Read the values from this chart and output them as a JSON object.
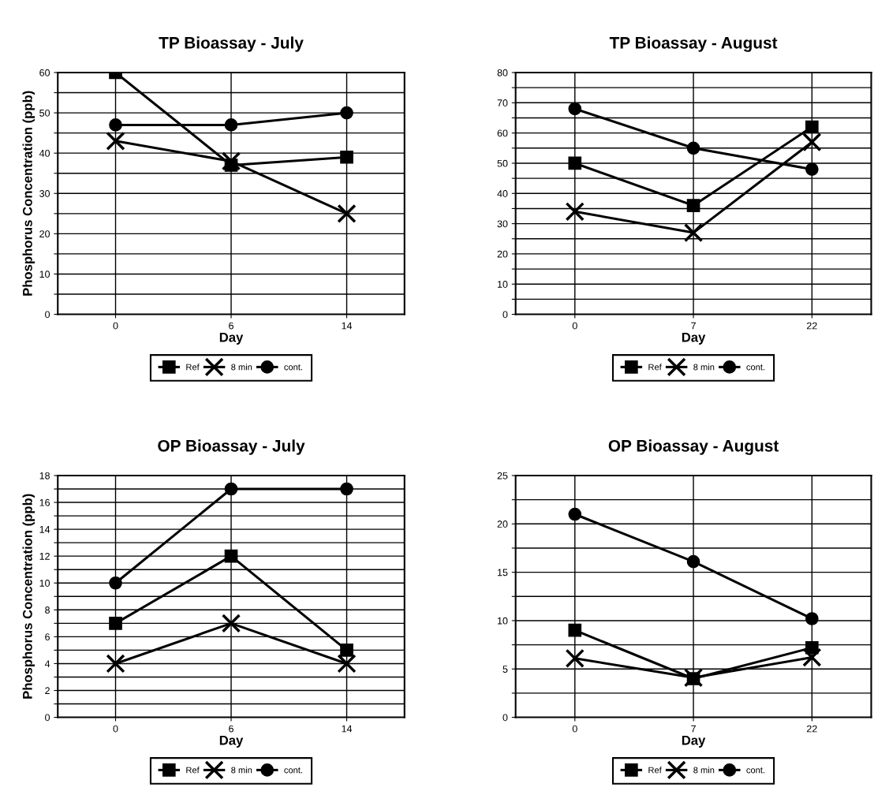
{
  "chart_data": [
    {
      "type": "line",
      "title": "TP Bioassay - July",
      "xlabel": "Day",
      "ylabel": "Phosphorus Concentration (ppb)",
      "categories": [
        "0",
        "6",
        "14"
      ],
      "ylim": [
        0,
        60
      ],
      "yticks": [
        0,
        {
          "value": 5,
          "label": null
        },
        10,
        {
          "value": 15,
          "label": null
        },
        20,
        {
          "value": 25,
          "label": null
        },
        30,
        {
          "value": 35,
          "label": null
        },
        40,
        {
          "value": 45,
          "label": null
        },
        50,
        {
          "value": 55,
          "label": null
        },
        60
      ],
      "grid": true,
      "legend": "bottom",
      "series": [
        {
          "name": "Ref",
          "color": "#000000",
          "marker": "square",
          "values": [
            60,
            37,
            39
          ]
        },
        {
          "name": "8 min",
          "color": "#000000",
          "marker": "cross",
          "values": [
            43,
            38,
            25
          ]
        },
        {
          "name": "cont.",
          "color": "#000000",
          "marker": "circle",
          "values": [
            47,
            47,
            50
          ]
        }
      ]
    },
    {
      "type": "line",
      "title": "TP Bioassay - August",
      "xlabel": "Day",
      "categories": [
        "0",
        "7",
        "22"
      ],
      "ylim": [
        0,
        80
      ],
      "yticks": [
        0,
        {
          "value": 5,
          "label": null
        },
        10,
        {
          "value": 15,
          "label": null
        },
        20,
        {
          "value": 25,
          "label": null
        },
        30,
        {
          "value": 35,
          "label": null
        },
        40,
        {
          "value": 45,
          "label": null
        },
        50,
        {
          "value": 55,
          "label": null
        },
        60,
        {
          "value": 65,
          "label": null
        },
        70,
        {
          "value": 75,
          "label": null
        },
        80
      ],
      "grid": true,
      "legend": "bottom",
      "series": [
        {
          "name": "Ref",
          "color": "#000000",
          "marker": "square",
          "values": [
            50,
            36,
            62
          ]
        },
        {
          "name": "8 min",
          "color": "#000000",
          "marker": "cross",
          "values": [
            34,
            27,
            57
          ]
        },
        {
          "name": "cont.",
          "color": "#000000",
          "marker": "circle",
          "values": [
            68,
            55,
            48
          ]
        }
      ]
    },
    {
      "type": "line",
      "title": "OP Bioassay - July",
      "xlabel": "Day",
      "ylabel": "Phosphorus Concentration (ppb)",
      "categories": [
        "0",
        "6",
        "14"
      ],
      "ylim": [
        0,
        18
      ],
      "yticks": [
        0,
        {
          "value": 1,
          "label": null
        },
        2,
        {
          "value": 3,
          "label": null
        },
        4,
        {
          "value": 5,
          "label": null
        },
        6,
        {
          "value": 7,
          "label": null
        },
        8,
        {
          "value": 9,
          "label": null
        },
        10,
        {
          "value": 11,
          "label": null
        },
        12,
        {
          "value": 13,
          "label": null
        },
        14,
        {
          "value": 15,
          "label": null
        },
        16,
        {
          "value": 17,
          "label": null
        },
        18
      ],
      "grid": true,
      "legend": "bottom",
      "series": [
        {
          "name": "Ref",
          "color": "#000000",
          "marker": "square",
          "values": [
            7,
            12,
            5
          ]
        },
        {
          "name": "8 min",
          "color": "#000000",
          "marker": "cross",
          "values": [
            4,
            7,
            4
          ]
        },
        {
          "name": "cont.",
          "color": "#000000",
          "marker": "circle",
          "values": [
            10,
            17,
            17
          ]
        }
      ]
    },
    {
      "type": "line",
      "title": "OP Bioassay - August",
      "xlabel": "Day",
      "categories": [
        "0",
        "7",
        "22"
      ],
      "ylim": [
        0,
        25
      ],
      "yticks": [
        0,
        {
          "value": 2.5,
          "label": null
        },
        5,
        {
          "value": 7.5,
          "label": null
        },
        10,
        {
          "value": 12.5,
          "label": null
        },
        15,
        {
          "value": 17.5,
          "label": null
        },
        20,
        {
          "value": 22.5,
          "label": null
        },
        25
      ],
      "grid": true,
      "legend": "bottom",
      "series": [
        {
          "name": "Ref",
          "color": "#000000",
          "marker": "square",
          "values": [
            9,
            4,
            7.2
          ]
        },
        {
          "name": "8 min",
          "color": "#000000",
          "marker": "cross",
          "values": [
            6.1,
            4.1,
            6.2
          ]
        },
        {
          "name": "cont.",
          "color": "#000000",
          "marker": "circle",
          "values": [
            21,
            16.1,
            10.2
          ]
        }
      ]
    }
  ]
}
